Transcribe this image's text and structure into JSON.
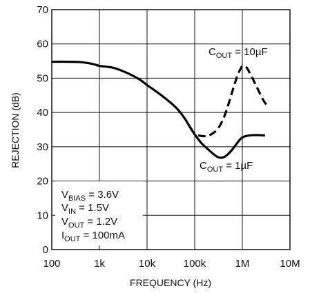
{
  "chart_data": {
    "type": "line",
    "xlabel": "FREQUENCY (Hz)",
    "ylabel": "REJECTION (dB)",
    "x_scale": "log",
    "xlim": [
      100,
      10000000
    ],
    "ylim": [
      0,
      70
    ],
    "grid": true,
    "x_ticks": [
      {
        "value": 100,
        "label": "100"
      },
      {
        "value": 1000,
        "label": "1k"
      },
      {
        "value": 10000,
        "label": "10k"
      },
      {
        "value": 100000,
        "label": "100k"
      },
      {
        "value": 1000000,
        "label": "1M"
      },
      {
        "value": 10000000,
        "label": "10M"
      }
    ],
    "y_ticks": [
      0,
      10,
      20,
      30,
      40,
      50,
      60,
      70
    ],
    "series": [
      {
        "name_main": "C",
        "name_sub": "OUT",
        "name_rest": " = 1µF",
        "style": "solid",
        "x": [
          100,
          200,
          400,
          700,
          1000,
          2000,
          4000,
          7000,
          10000,
          20000,
          40000,
          60000,
          80000,
          100000,
          140000,
          200000,
          280000,
          350000,
          450000,
          600000,
          800000,
          1000000,
          1400000,
          2000000,
          3000000
        ],
        "y": [
          54.8,
          54.8,
          54.7,
          54.2,
          53.6,
          53.0,
          51.4,
          49.6,
          48.0,
          45.0,
          41.5,
          38.5,
          35.7,
          33.6,
          31.0,
          29.0,
          27.3,
          26.8,
          27.3,
          29.0,
          31.3,
          32.7,
          33.3,
          33.4,
          33.3
        ]
      },
      {
        "name_main": "C",
        "name_sub": "OUT",
        "name_rest": " = 10µF",
        "style": "dashed",
        "x": [
          80000,
          100000,
          130000,
          170000,
          220000,
          300000,
          400000,
          500000,
          600000,
          700000,
          800000,
          900000,
          1000000,
          1200000,
          1500000,
          2000000,
          2700000,
          3200000
        ],
        "y": [
          35.7,
          33.8,
          33.2,
          33.1,
          33.6,
          35.1,
          38.2,
          42.0,
          45.6,
          48.6,
          51.0,
          52.5,
          53.5,
          53.3,
          51.0,
          47.5,
          43.8,
          42.3
        ]
      }
    ],
    "annotations": {
      "label_10uF": {
        "main": "C",
        "sub": "OUT",
        "rest": " = 10µF"
      },
      "label_1uF": {
        "main": "C",
        "sub": "OUT",
        "rest": " = 1µF"
      },
      "conditions": [
        {
          "main": "V",
          "sub": "BIAS",
          "rest": " = 3.6V"
        },
        {
          "main": "V",
          "sub": "IN",
          "rest": " = 1.5V"
        },
        {
          "main": "V",
          "sub": "OUT",
          "rest": " = 1.2V"
        },
        {
          "main": "I",
          "sub": "OUT",
          "rest": " = 100mA"
        }
      ]
    }
  }
}
